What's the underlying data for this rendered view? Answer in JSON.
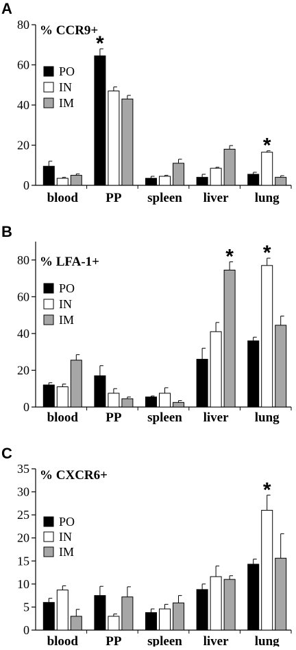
{
  "colors": {
    "PO": "#000000",
    "IN": "#ffffff",
    "IM": "#a6a6a6",
    "stroke": "#000000"
  },
  "legend": [
    "PO",
    "IN",
    "IM"
  ],
  "chart_data": [
    {
      "type": "bar",
      "panel_label": "A",
      "title": "% CCR9+",
      "categories": [
        "blood",
        "PP",
        "spleen",
        "liver",
        "lung"
      ],
      "ylim": [
        0,
        80
      ],
      "yticks": [
        0,
        20,
        40,
        60,
        80
      ],
      "series": [
        {
          "name": "PO",
          "values": [
            9.5,
            64.5,
            3.5,
            4,
            5.5
          ],
          "errors": [
            2.5,
            3.5,
            1,
            1.5,
            1
          ]
        },
        {
          "name": "IN",
          "values": [
            3.5,
            47,
            4.5,
            8.5,
            16.5
          ],
          "errors": [
            0.5,
            2,
            0.5,
            0.5,
            0.7
          ]
        },
        {
          "name": "IM",
          "values": [
            5,
            43,
            11,
            18,
            4
          ],
          "errors": [
            0.7,
            1.8,
            2,
            1.8,
            0.8
          ]
        }
      ],
      "significance": [
        {
          "category": "PP",
          "series": "PO",
          "mark": "*"
        },
        {
          "category": "lung",
          "series": "IN",
          "mark": "*"
        }
      ],
      "legend_position": "left"
    },
    {
      "type": "bar",
      "panel_label": "B",
      "title": "% LFA-1+",
      "categories": [
        "blood",
        "PP",
        "spleen",
        "liver",
        "lung"
      ],
      "ylim": [
        0,
        90
      ],
      "yticks": [
        0,
        20,
        40,
        60,
        80
      ],
      "series": [
        {
          "name": "PO",
          "values": [
            12,
            17,
            5.5,
            26,
            36
          ],
          "errors": [
            1.2,
            5.5,
            0.5,
            6,
            2
          ]
        },
        {
          "name": "IN",
          "values": [
            11,
            7.5,
            7.5,
            41,
            77
          ],
          "errors": [
            1.5,
            2.5,
            3,
            5,
            4
          ]
        },
        {
          "name": "IM",
          "values": [
            25.5,
            4.5,
            2.5,
            74.5,
            44.5
          ],
          "errors": [
            3,
            1,
            1,
            4.5,
            5
          ]
        }
      ],
      "significance": [
        {
          "category": "liver",
          "series": "IM",
          "mark": "*"
        },
        {
          "category": "lung",
          "series": "IN",
          "mark": "*"
        }
      ],
      "legend_position": "left"
    },
    {
      "type": "bar",
      "panel_label": "C",
      "title": "% CXCR6+",
      "categories": [
        "blood",
        "PP",
        "spleen",
        "liver",
        "lung"
      ],
      "ylim": [
        0,
        35
      ],
      "yticks": [
        0,
        5,
        10,
        15,
        20,
        25,
        30,
        35
      ],
      "series": [
        {
          "name": "PO",
          "values": [
            6,
            7.5,
            3.8,
            8.8,
            14.3
          ],
          "errors": [
            0.9,
            2,
            0.8,
            1.2,
            1.1
          ]
        },
        {
          "name": "IN",
          "values": [
            8.7,
            3,
            4.6,
            11.6,
            26
          ],
          "errors": [
            0.9,
            0.5,
            1,
            2.3,
            3.3
          ]
        },
        {
          "name": "IM",
          "values": [
            3,
            7.2,
            5.9,
            11,
            15.6
          ],
          "errors": [
            1.5,
            2.2,
            1.6,
            0.8,
            5.3
          ]
        }
      ],
      "significance": [
        {
          "category": "lung",
          "series": "IN",
          "mark": "*"
        }
      ],
      "legend_position": "left"
    }
  ]
}
